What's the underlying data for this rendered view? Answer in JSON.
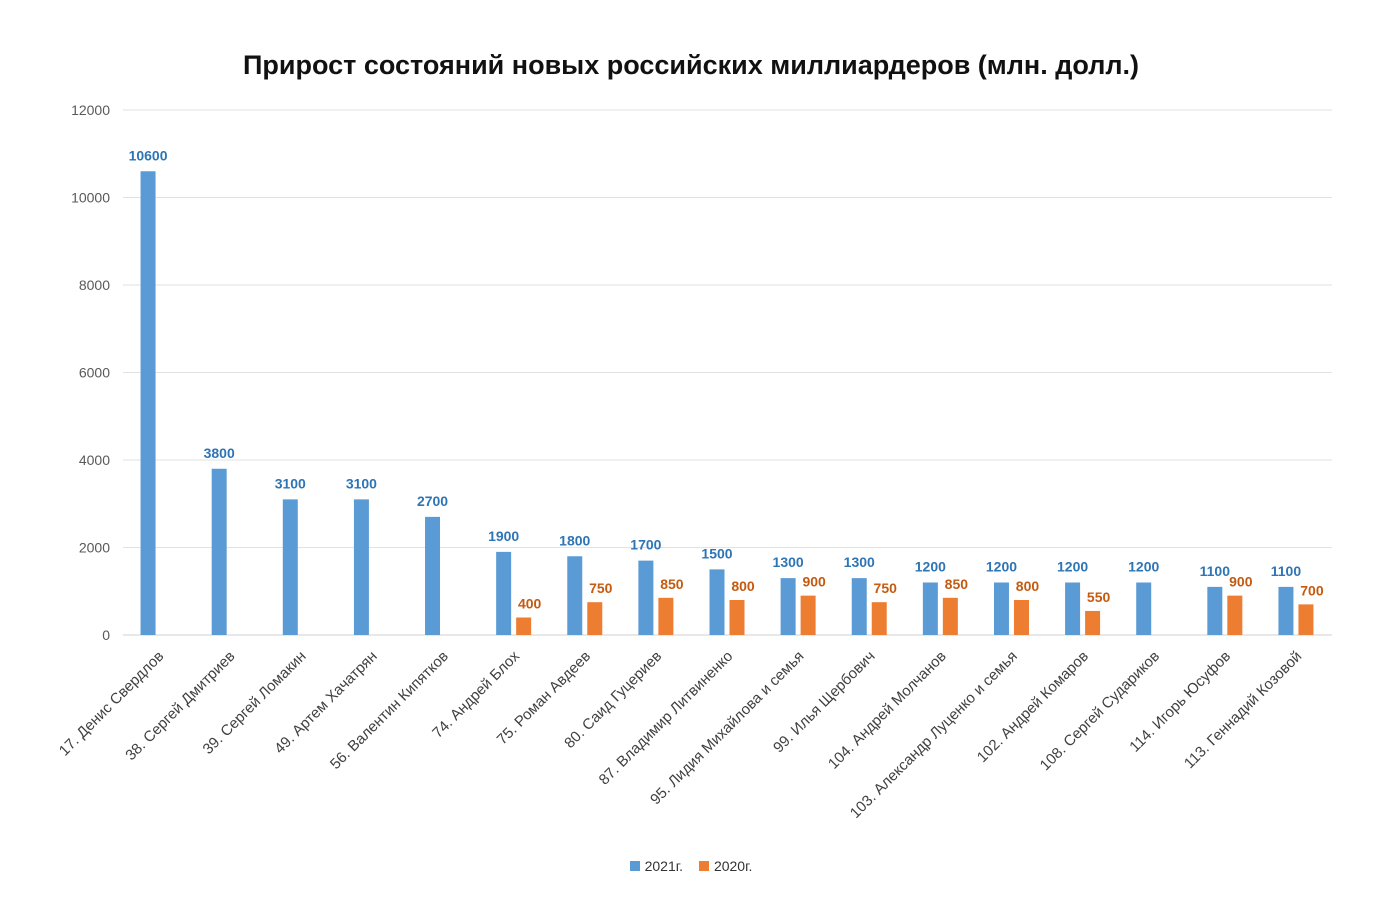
{
  "chart_data": {
    "type": "bar",
    "title": "Прирост состояний новых российских миллиардеров (млн. долл.)",
    "xlabel": "",
    "ylabel": "",
    "ylim": [
      0,
      12000
    ],
    "yticks": [
      0,
      2000,
      4000,
      6000,
      8000,
      10000,
      12000
    ],
    "grid": true,
    "legend_position": "bottom",
    "categories": [
      "17. Денис Свердлов",
      "38. Сергей Дмитриев",
      "39. Сергей Ломакин",
      "49. Артем Хачатрян",
      "56. Валентин Кипятков",
      "74. Андрей Блох",
      "75. Роман Авдеев",
      "80. Саид Гуцериев",
      "87. Владимир Литвиненко",
      "95. Лидия Михайлова и семья",
      "99. Илья Щербович",
      "104. Андрей Молчанов",
      "103. Александр Луценко и семья",
      "102. Андрей Комаров",
      "108. Сергей Судариков",
      "114. Игорь Юсуфов",
      "113. Геннадий Козовой"
    ],
    "series": [
      {
        "name": "2021г.",
        "color": "#5B9BD5",
        "label_color": "#2E75B6",
        "values": [
          10600,
          3800,
          3100,
          3100,
          2700,
          1900,
          1800,
          1700,
          1500,
          1300,
          1300,
          1200,
          1200,
          1200,
          1200,
          1100,
          1100
        ]
      },
      {
        "name": "2020г.",
        "color": "#ED7D31",
        "label_color": "#C55A11",
        "values": [
          null,
          null,
          null,
          null,
          null,
          400,
          750,
          850,
          800,
          900,
          750,
          850,
          800,
          550,
          null,
          900,
          700
        ]
      }
    ]
  }
}
